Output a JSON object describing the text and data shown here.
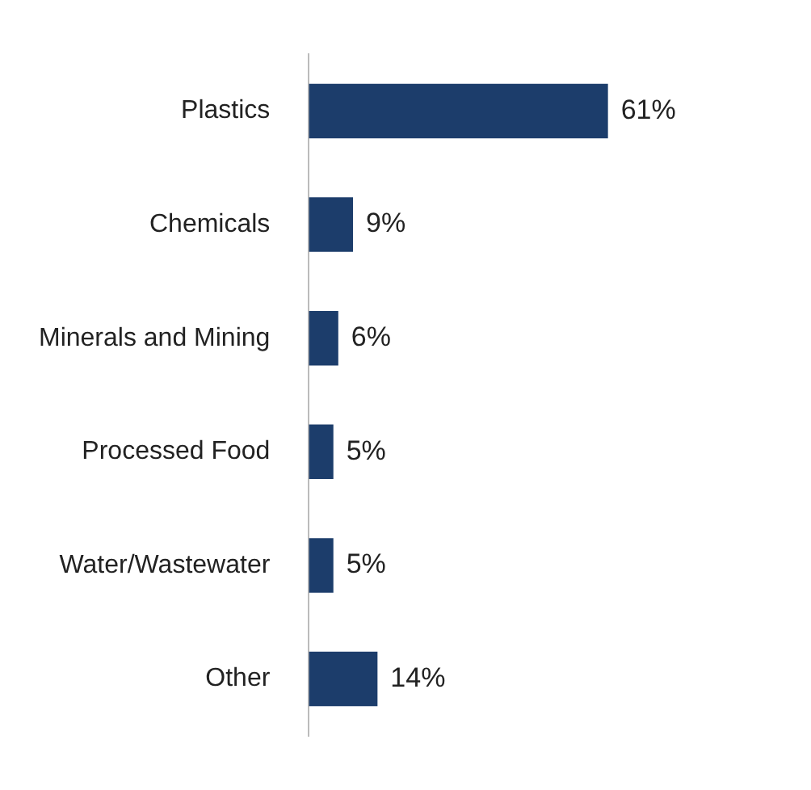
{
  "chart_data": {
    "type": "bar",
    "orientation": "horizontal",
    "categories": [
      "Plastics",
      "Chemicals",
      "Minerals and Mining",
      "Processed Food",
      "Water/Wastewater",
      "Other"
    ],
    "values": [
      61,
      9,
      6,
      5,
      5,
      14
    ],
    "color": "#1c3d6b",
    "value_labels": [
      "61%",
      "9%",
      "6%",
      "5%",
      "5%",
      "14%"
    ],
    "tick_labels": "y",
    "legend": false
  }
}
